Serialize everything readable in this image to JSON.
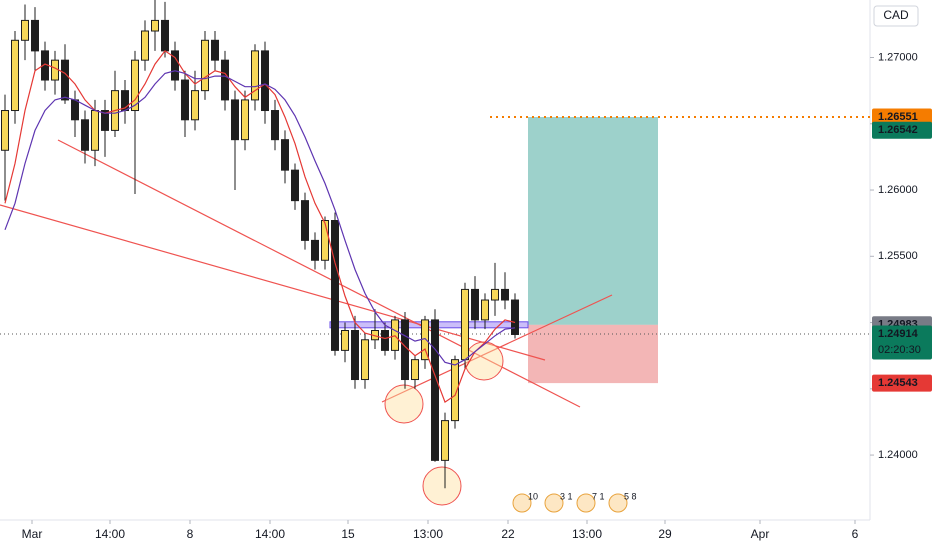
{
  "chart_data": {
    "type": "candlestick",
    "currency": "CAD",
    "xlim": [
      -0.5,
      86.5
    ],
    "ylim": [
      1.2351,
      1.27434
    ],
    "xticks": [
      {
        "value": 2.7,
        "label": "Mar"
      },
      {
        "value": 10.5,
        "label": "14:00"
      },
      {
        "value": 18.5,
        "label": "8"
      },
      {
        "value": 26.5,
        "label": "14:00"
      },
      {
        "value": 34.3,
        "label": "15"
      },
      {
        "value": 42.3,
        "label": "13:00"
      },
      {
        "value": 50.3,
        "label": "22"
      },
      {
        "value": 58.2,
        "label": "13:00"
      },
      {
        "value": 66,
        "label": "29"
      },
      {
        "value": 75.5,
        "label": "Apr"
      },
      {
        "value": 85,
        "label": "6"
      }
    ],
    "yticks": [
      {
        "value": 1.24,
        "label": "1.24000"
      },
      {
        "value": 1.245,
        "label": "1.24500"
      },
      {
        "value": 1.25,
        "label": "1.25000"
      },
      {
        "value": 1.255,
        "label": "1.25500"
      },
      {
        "value": 1.26,
        "label": "1.26000"
      },
      {
        "value": 1.265,
        "label": "1.26500"
      },
      {
        "value": 1.27,
        "label": "1.27000"
      }
    ],
    "up_color": "#f7d85a",
    "down_color": "#1e1e1e",
    "open": [
      1.263,
      1.266,
      1.2713,
      1.2728,
      1.2705,
      1.2683,
      1.2698,
      1.2668,
      1.2653,
      1.263,
      1.266,
      1.2645,
      1.2675,
      1.266,
      1.2698,
      1.272,
      1.2728,
      1.2705,
      1.2683,
      1.2653,
      1.2675,
      1.2713,
      1.2698,
      1.2668,
      1.2638,
      1.2668,
      1.2705,
      1.266,
      1.2638,
      1.2615,
      1.2592,
      1.2562,
      1.2547,
      1.2577,
      1.2479,
      1.2494,
      1.2457,
      1.2487,
      1.2494,
      1.2479,
      1.2502,
      1.2457,
      1.2472,
      1.2502,
      1.2396,
      1.2426,
      1.2472,
      1.2525,
      1.2502,
      1.2517,
      1.2525,
      1.2517
    ],
    "high": [
      1.2672,
      1.272,
      1.274,
      1.2738,
      1.2712,
      1.2705,
      1.271,
      1.2675,
      1.266,
      1.2668,
      1.2668,
      1.269,
      1.2683,
      1.2705,
      1.2728,
      1.2745,
      1.2742,
      1.2712,
      1.269,
      1.269,
      1.272,
      1.272,
      1.2705,
      1.2675,
      1.2675,
      1.271,
      1.2712,
      1.2668,
      1.2645,
      1.262,
      1.2598,
      1.2568,
      1.258,
      1.2583,
      1.25,
      1.2505,
      1.2492,
      1.251,
      1.25,
      1.2505,
      1.2508,
      1.2475,
      1.2505,
      1.251,
      1.2432,
      1.2475,
      1.253,
      1.2535,
      1.2522,
      1.2545,
      1.2538,
      1.2522
    ],
    "low": [
      1.2592,
      1.265,
      1.2698,
      1.269,
      1.2675,
      1.2672,
      1.2665,
      1.264,
      1.262,
      1.2618,
      1.2625,
      1.264,
      1.265,
      1.2597,
      1.269,
      1.2705,
      1.27,
      1.2675,
      1.264,
      1.2645,
      1.2668,
      1.269,
      1.266,
      1.26,
      1.263,
      1.266,
      1.265,
      1.263,
      1.2605,
      1.2585,
      1.2555,
      1.254,
      1.254,
      1.2475,
      1.247,
      1.245,
      1.245,
      1.248,
      1.2475,
      1.2472,
      1.245,
      1.245,
      1.2465,
      1.2395,
      1.2375,
      1.242,
      1.2465,
      1.2495,
      1.2495,
      1.2505,
      1.251,
      1.2488
    ],
    "close": [
      1.266,
      1.2713,
      1.2728,
      1.2705,
      1.2683,
      1.2698,
      1.2668,
      1.2653,
      1.263,
      1.266,
      1.2645,
      1.2675,
      1.266,
      1.2698,
      1.272,
      1.2728,
      1.2705,
      1.2683,
      1.2653,
      1.2675,
      1.2713,
      1.2698,
      1.2668,
      1.2638,
      1.2668,
      1.2705,
      1.266,
      1.2638,
      1.2615,
      1.2592,
      1.2562,
      1.2547,
      1.2577,
      1.2479,
      1.2494,
      1.2457,
      1.2487,
      1.2494,
      1.2479,
      1.2502,
      1.2457,
      1.2472,
      1.2502,
      1.2396,
      1.2426,
      1.2472,
      1.2525,
      1.2502,
      1.2517,
      1.2525,
      1.2517,
      1.2491
    ],
    "series": [
      {
        "color": "#e53935",
        "values": [
          1.259,
          1.262,
          1.266,
          1.269,
          1.2695,
          1.2692,
          1.2688,
          1.268,
          1.2668,
          1.266,
          1.2658,
          1.266,
          1.2662,
          1.2668,
          1.268,
          1.2695,
          1.2705,
          1.27,
          1.2688,
          1.268,
          1.2685,
          1.269,
          1.2688,
          1.2678,
          1.267,
          1.2675,
          1.268,
          1.2672,
          1.2655,
          1.2635,
          1.261,
          1.259,
          1.2575,
          1.2545,
          1.252,
          1.25,
          1.2492,
          1.249,
          1.2488,
          1.249,
          1.2482,
          1.2475,
          1.248,
          1.246,
          1.244,
          1.2445,
          1.2465,
          1.2478,
          1.2485,
          1.2495,
          1.2502,
          1.25
        ]
      },
      {
        "color": "#5e35b1",
        "values": [
          1.257,
          1.259,
          1.262,
          1.2645,
          1.266,
          1.2668,
          1.267,
          1.2668,
          1.2664,
          1.266,
          1.2658,
          1.2658,
          1.266,
          1.2664,
          1.267,
          1.268,
          1.2688,
          1.269,
          1.2688,
          1.2684,
          1.2684,
          1.2686,
          1.2686,
          1.2682,
          1.2678,
          1.2678,
          1.268,
          1.2676,
          1.2668,
          1.2656,
          1.264,
          1.2622,
          1.2605,
          1.2585,
          1.2562,
          1.254,
          1.2522,
          1.2508,
          1.2498,
          1.2494,
          1.249,
          1.2486,
          1.2488,
          1.248,
          1.247,
          1.2468,
          1.2472,
          1.2478,
          1.2484,
          1.249,
          1.2495,
          1.2496
        ]
      }
    ],
    "price_tags": [
      {
        "value": 1.26551,
        "color": "#f57c00"
      },
      {
        "value": 1.26542,
        "color": "#0b7a5c"
      },
      {
        "value": 1.24983,
        "color": "#787b86"
      },
      {
        "value": 1.24914,
        "color": "#0b7a5c",
        "countdown": "02:20:30"
      },
      {
        "value": 1.24543,
        "color": "#e53935"
      }
    ],
    "events": [
      "10",
      "3 1",
      "7 1",
      "5 8"
    ]
  }
}
